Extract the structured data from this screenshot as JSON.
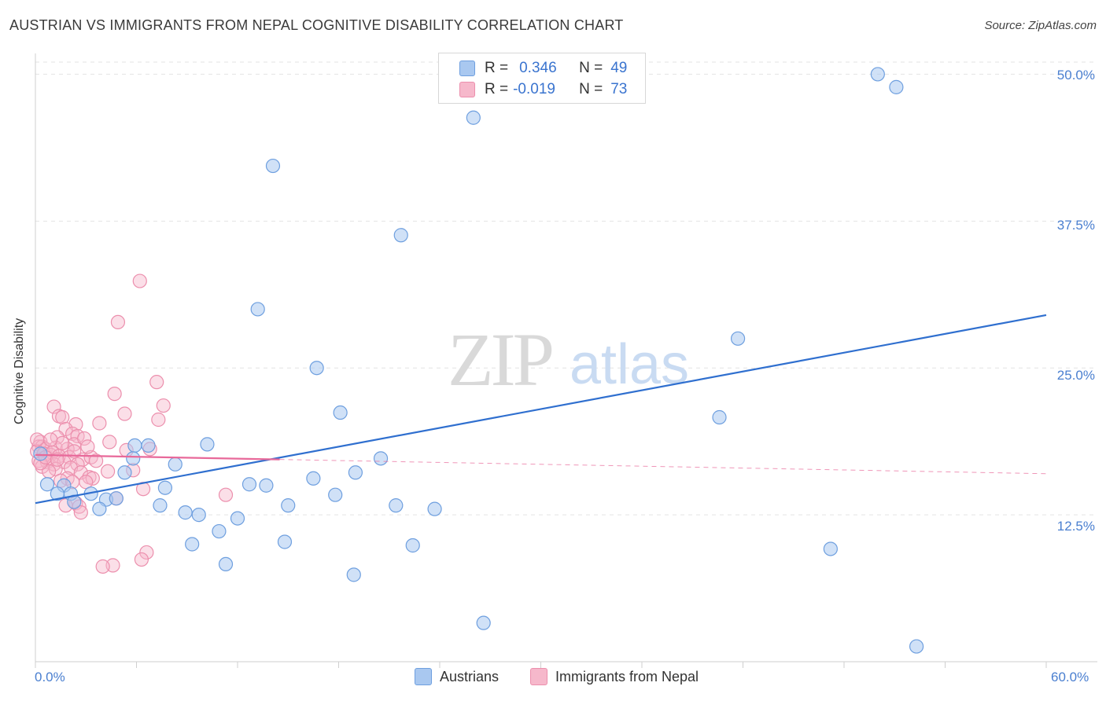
{
  "title": "AUSTRIAN VS IMMIGRANTS FROM NEPAL COGNITIVE DISABILITY CORRELATION CHART",
  "source": "Source: ZipAtlas.com",
  "watermark": {
    "zip": "ZIP",
    "atlas": "atlas"
  },
  "legend": {
    "rows": [
      {
        "r_label": "R =",
        "r_value": "0.346",
        "n_label": "N =",
        "n_value": "49"
      },
      {
        "r_label": "R =",
        "r_value": "-0.019",
        "n_label": "N =",
        "n_value": "73"
      }
    ]
  },
  "bottom_legend": {
    "austrians": "Austrians",
    "nepal": "Immigrants from Nepal"
  },
  "colors": {
    "blue_fill": "#a9c8f0",
    "blue_stroke": "#6e9fdf",
    "blue_line": "#2f6fcf",
    "pink_fill": "#f6b8cb",
    "pink_stroke": "#ec8fad",
    "pink_line": "#e8699a",
    "tick_text": "#4a7fd0",
    "grid": "#e3e3e3"
  },
  "chart_data": {
    "type": "scatter",
    "title": "AUSTRIAN VS IMMIGRANTS FROM NEPAL COGNITIVE DISABILITY CORRELATION CHART",
    "xlabel": "",
    "ylabel": "Cognitive Disability",
    "xlim": [
      0,
      60
    ],
    "ylim": [
      0,
      51.5
    ],
    "x_tick_labels": [
      "0.0%",
      "60.0%"
    ],
    "y_ticks": [
      12.5,
      25.0,
      37.5,
      50.0
    ],
    "y_tick_labels": [
      "12.5%",
      "25.0%",
      "37.5%",
      "50.0%"
    ],
    "series": [
      {
        "name": "Austrians",
        "r": 0.346,
        "n": 49,
        "trend": {
          "x0": 0,
          "y0": 13.5,
          "x1": 60,
          "y1": 29.5,
          "dashed_from": null
        },
        "points": [
          [
            26.0,
            46.3
          ],
          [
            50.0,
            50.0
          ],
          [
            51.1,
            48.9
          ],
          [
            14.1,
            42.2
          ],
          [
            21.7,
            36.3
          ],
          [
            13.2,
            30.0
          ],
          [
            41.7,
            27.5
          ],
          [
            16.7,
            25.0
          ],
          [
            18.1,
            21.2
          ],
          [
            40.6,
            20.8
          ],
          [
            6.7,
            18.4
          ],
          [
            10.2,
            18.5
          ],
          [
            20.5,
            17.3
          ],
          [
            5.9,
            18.4
          ],
          [
            5.8,
            17.3
          ],
          [
            8.3,
            16.8
          ],
          [
            19.0,
            16.1
          ],
          [
            16.5,
            15.6
          ],
          [
            5.3,
            16.1
          ],
          [
            12.7,
            15.1
          ],
          [
            13.7,
            15.0
          ],
          [
            0.7,
            15.1
          ],
          [
            1.7,
            15.0
          ],
          [
            7.7,
            14.8
          ],
          [
            17.8,
            14.2
          ],
          [
            1.3,
            14.3
          ],
          [
            2.1,
            14.3
          ],
          [
            3.3,
            14.3
          ],
          [
            4.2,
            13.8
          ],
          [
            4.8,
            13.9
          ],
          [
            2.3,
            13.6
          ],
          [
            3.8,
            13.0
          ],
          [
            7.4,
            13.3
          ],
          [
            15.0,
            13.3
          ],
          [
            21.4,
            13.3
          ],
          [
            23.7,
            13.0
          ],
          [
            8.9,
            12.7
          ],
          [
            9.7,
            12.5
          ],
          [
            12.0,
            12.2
          ],
          [
            10.9,
            11.1
          ],
          [
            9.3,
            10.0
          ],
          [
            14.8,
            10.2
          ],
          [
            22.4,
            9.9
          ],
          [
            47.2,
            9.6
          ],
          [
            11.3,
            8.3
          ],
          [
            18.9,
            7.4
          ],
          [
            26.6,
            3.3
          ],
          [
            52.3,
            1.3
          ],
          [
            0.3,
            17.7
          ]
        ]
      },
      {
        "name": "Immigrants from Nepal",
        "r": -0.019,
        "n": 73,
        "trend": {
          "x0": 0,
          "y0": 17.6,
          "x1": 60,
          "y1": 16.0,
          "dashed_from": 14.5
        },
        "points": [
          [
            6.2,
            32.4
          ],
          [
            4.9,
            28.9
          ],
          [
            7.2,
            23.8
          ],
          [
            4.7,
            22.8
          ],
          [
            7.6,
            21.8
          ],
          [
            1.1,
            21.7
          ],
          [
            5.3,
            21.1
          ],
          [
            1.4,
            20.9
          ],
          [
            1.6,
            20.8
          ],
          [
            7.3,
            20.6
          ],
          [
            3.8,
            20.3
          ],
          [
            2.4,
            20.2
          ],
          [
            1.8,
            19.8
          ],
          [
            2.2,
            19.4
          ],
          [
            1.3,
            19.1
          ],
          [
            2.5,
            19.2
          ],
          [
            4.4,
            18.7
          ],
          [
            0.3,
            18.7
          ],
          [
            2.3,
            18.5
          ],
          [
            0.2,
            18.3
          ],
          [
            0.4,
            18.3
          ],
          [
            0.6,
            18.1
          ],
          [
            1.2,
            18.2
          ],
          [
            1.9,
            18.1
          ],
          [
            5.4,
            18.0
          ],
          [
            6.8,
            18.1
          ],
          [
            0.1,
            17.9
          ],
          [
            0.5,
            17.7
          ],
          [
            0.9,
            17.6
          ],
          [
            1.0,
            17.8
          ],
          [
            1.4,
            17.5
          ],
          [
            2.0,
            17.4
          ],
          [
            2.8,
            17.2
          ],
          [
            3.3,
            17.4
          ],
          [
            0.2,
            17.1
          ],
          [
            0.7,
            17.0
          ],
          [
            1.1,
            16.8
          ],
          [
            1.7,
            17.0
          ],
          [
            2.5,
            16.8
          ],
          [
            3.6,
            17.1
          ],
          [
            0.4,
            16.6
          ],
          [
            1.2,
            16.4
          ],
          [
            2.1,
            16.5
          ],
          [
            0.8,
            16.2
          ],
          [
            2.7,
            16.1
          ],
          [
            4.3,
            16.2
          ],
          [
            5.8,
            16.3
          ],
          [
            3.2,
            15.7
          ],
          [
            1.9,
            15.6
          ],
          [
            3.4,
            15.6
          ],
          [
            1.5,
            15.4
          ],
          [
            2.2,
            15.3
          ],
          [
            3.0,
            15.3
          ],
          [
            6.4,
            14.7
          ],
          [
            11.3,
            14.2
          ],
          [
            4.8,
            13.9
          ],
          [
            2.4,
            13.5
          ],
          [
            1.8,
            13.3
          ],
          [
            2.6,
            13.2
          ],
          [
            2.7,
            12.7
          ],
          [
            6.6,
            9.3
          ],
          [
            6.3,
            8.7
          ],
          [
            4.6,
            8.2
          ],
          [
            4.0,
            8.1
          ],
          [
            0.1,
            18.9
          ],
          [
            0.3,
            16.9
          ],
          [
            1.6,
            18.6
          ],
          [
            2.9,
            19.0
          ],
          [
            0.6,
            17.4
          ],
          [
            1.3,
            17.2
          ],
          [
            2.3,
            17.9
          ],
          [
            3.1,
            18.3
          ],
          [
            0.9,
            18.9
          ]
        ]
      }
    ]
  }
}
